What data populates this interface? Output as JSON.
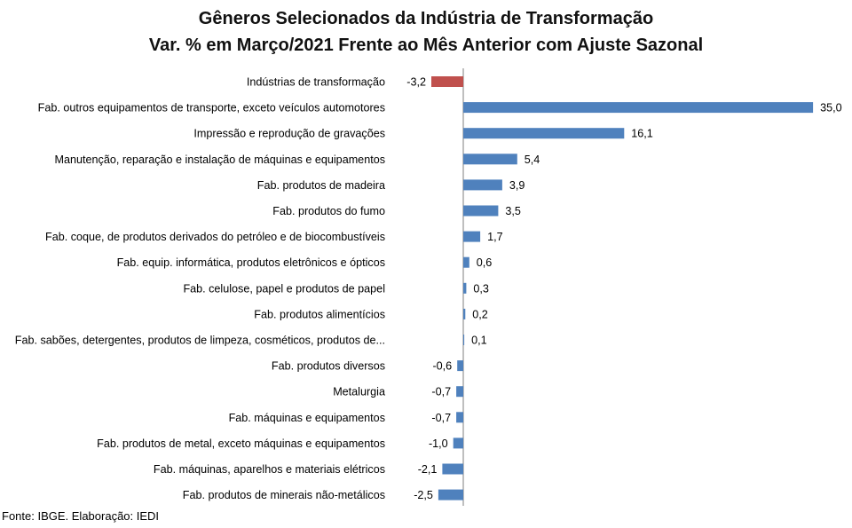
{
  "chart_data": {
    "type": "bar",
    "orientation": "horizontal",
    "title": "Gêneros Selecionados da Indústria de Transformação",
    "subtitle": "Var. % em Março/2021 Frente ao Mês Anterior com Ajuste Sazonal",
    "source": "Fonte: IBGE. Elaboração: IEDI",
    "categories": [
      "Indústrias de transformação",
      "Fab. outros equipamentos de transporte, exceto veículos automotores",
      "Impressão e reprodução de gravações",
      "Manutenção, reparação e instalação de máquinas e equipamentos",
      "Fab. produtos de madeira",
      "Fab. produtos do fumo",
      "Fab. coque, de produtos derivados do petróleo e de biocombustíveis",
      "Fab. equip. informática, produtos eletrônicos e ópticos",
      "Fab. celulose, papel e produtos de papel",
      "Fab. produtos alimentícios",
      "Fab. sabões, detergentes, produtos de limpeza, cosméticos, produtos de...",
      "Fab. produtos diversos",
      "Metalurgia",
      "Fab. máquinas e equipamentos",
      "Fab. produtos de metal, exceto máquinas e equipamentos",
      "Fab. máquinas, aparelhos e materiais elétricos",
      "Fab. produtos de minerais não-metálicos"
    ],
    "values": [
      -3.2,
      35.0,
      16.1,
      5.4,
      3.9,
      3.5,
      1.7,
      0.6,
      0.3,
      0.2,
      0.1,
      -0.6,
      -0.7,
      -0.7,
      -1.0,
      -2.1,
      -2.5
    ],
    "value_labels": [
      "-3,2",
      "35,0",
      "16,1",
      "5,4",
      "3,9",
      "3,5",
      "1,7",
      "0,6",
      "0,3",
      "0,2",
      "0,1",
      "-0,6",
      "-0,7",
      "-0,7",
      "-1,0",
      "-2,1",
      "-2,5"
    ],
    "highlight_index": 0,
    "colors": {
      "highlight": "#C0504D",
      "bar": "#4F81BD",
      "axis": "#7F7F7F"
    },
    "grid": false,
    "legend": "none"
  }
}
